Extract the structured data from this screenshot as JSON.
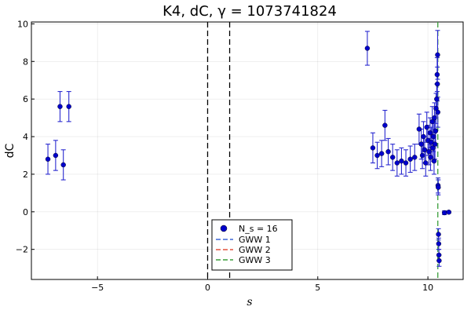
{
  "chart_data": {
    "type": "scatter",
    "title": "K4, dC, γ = 1073741824",
    "xlabel": "s",
    "ylabel": "dC",
    "xlim": [
      -8.0,
      11.6
    ],
    "ylim": [
      -3.6,
      10.1
    ],
    "xticks": [
      -5,
      0,
      5,
      10
    ],
    "xtick_labels": [
      "−5",
      "0",
      "5",
      "10"
    ],
    "yticks": [
      -2,
      0,
      2,
      4,
      6,
      8,
      10
    ],
    "ytick_labels": [
      "−2",
      "0",
      "2",
      "4",
      "6",
      "8",
      "10"
    ],
    "grid": true,
    "legend_position": "bottom-center",
    "vlines": [
      {
        "x": 0,
        "color": "#000000",
        "style": "dashed"
      },
      {
        "x": 1,
        "color": "#000000",
        "style": "dashed"
      },
      {
        "x": 10.45,
        "color": "#3a9e3a",
        "style": "dashed"
      }
    ],
    "series": [
      {
        "name": "N_s = 16",
        "color": "#0000cc",
        "errorbar_color": "#2a2ad0",
        "points": [
          {
            "x": -7.25,
            "y": 2.8,
            "err": 0.8
          },
          {
            "x": -6.9,
            "y": 3.0,
            "err": 0.8
          },
          {
            "x": -6.7,
            "y": 5.6,
            "err": 0.8
          },
          {
            "x": -6.55,
            "y": 2.5,
            "err": 0.8
          },
          {
            "x": -6.3,
            "y": 5.6,
            "err": 0.8
          },
          {
            "x": 7.25,
            "y": 8.7,
            "err": 0.9
          },
          {
            "x": 7.5,
            "y": 3.4,
            "err": 0.8
          },
          {
            "x": 7.7,
            "y": 3.0,
            "err": 0.7
          },
          {
            "x": 7.9,
            "y": 3.1,
            "err": 0.7
          },
          {
            "x": 8.05,
            "y": 4.6,
            "err": 0.8
          },
          {
            "x": 8.2,
            "y": 3.2,
            "err": 0.7
          },
          {
            "x": 8.4,
            "y": 2.9,
            "err": 0.7
          },
          {
            "x": 8.6,
            "y": 2.6,
            "err": 0.7
          },
          {
            "x": 8.8,
            "y": 2.7,
            "err": 0.7
          },
          {
            "x": 9.0,
            "y": 2.6,
            "err": 0.7
          },
          {
            "x": 9.2,
            "y": 2.8,
            "err": 0.7
          },
          {
            "x": 9.4,
            "y": 2.9,
            "err": 0.7
          },
          {
            "x": 9.6,
            "y": 4.4,
            "err": 0.8
          },
          {
            "x": 9.7,
            "y": 3.6,
            "err": 0.8
          },
          {
            "x": 9.75,
            "y": 3.0,
            "err": 0.7
          },
          {
            "x": 9.8,
            "y": 4.0,
            "err": 0.8
          },
          {
            "x": 9.85,
            "y": 3.3,
            "err": 0.7
          },
          {
            "x": 9.9,
            "y": 2.6,
            "err": 0.7
          },
          {
            "x": 9.95,
            "y": 4.5,
            "err": 0.8
          },
          {
            "x": 10.0,
            "y": 3.8,
            "err": 0.8
          },
          {
            "x": 10.05,
            "y": 3.2,
            "err": 0.7
          },
          {
            "x": 10.1,
            "y": 4.2,
            "err": 0.8
          },
          {
            "x": 10.12,
            "y": 2.9,
            "err": 0.7
          },
          {
            "x": 10.15,
            "y": 3.7,
            "err": 0.8
          },
          {
            "x": 10.2,
            "y": 4.8,
            "err": 0.8
          },
          {
            "x": 10.22,
            "y": 3.4,
            "err": 0.7
          },
          {
            "x": 10.25,
            "y": 4.0,
            "err": 0.8
          },
          {
            "x": 10.28,
            "y": 2.7,
            "err": 0.7
          },
          {
            "x": 10.3,
            "y": 5.0,
            "err": 0.8
          },
          {
            "x": 10.32,
            "y": 3.6,
            "err": 0.8
          },
          {
            "x": 10.35,
            "y": 4.3,
            "err": 0.8
          },
          {
            "x": 10.37,
            "y": 5.5,
            "err": 0.8
          },
          {
            "x": 10.4,
            "y": 6.0,
            "err": 0.8
          },
          {
            "x": 10.42,
            "y": 7.3,
            "err": 0.9
          },
          {
            "x": 10.43,
            "y": 6.8,
            "err": 0.9
          },
          {
            "x": 10.44,
            "y": 8.35,
            "err": 1.3
          },
          {
            "x": 10.45,
            "y": 5.3,
            "err": 0.8
          },
          {
            "x": 10.46,
            "y": 1.4,
            "err": 0.4
          },
          {
            "x": 10.47,
            "y": 1.3,
            "err": 0.4
          },
          {
            "x": 10.48,
            "y": -1.2,
            "err": 0.3
          },
          {
            "x": 10.49,
            "y": -1.7,
            "err": 0.3
          },
          {
            "x": 10.5,
            "y": -2.3,
            "err": 0.3
          },
          {
            "x": 10.51,
            "y": -2.6,
            "err": 0.3
          },
          {
            "x": 10.75,
            "y": -0.05,
            "err": 0.1
          },
          {
            "x": 10.95,
            "y": -0.02,
            "err": 0.05
          }
        ]
      }
    ],
    "legend": [
      {
        "label": "N_s = 16",
        "color": "#0000cc",
        "marker": "dot"
      },
      {
        "label": "GWW 1",
        "color": "#3b67d6",
        "marker": "dashed"
      },
      {
        "label": "GWW 2",
        "color": "#e3523d",
        "marker": "dashed"
      },
      {
        "label": "GWW 3",
        "color": "#3a9e3a",
        "marker": "dashed"
      }
    ]
  }
}
